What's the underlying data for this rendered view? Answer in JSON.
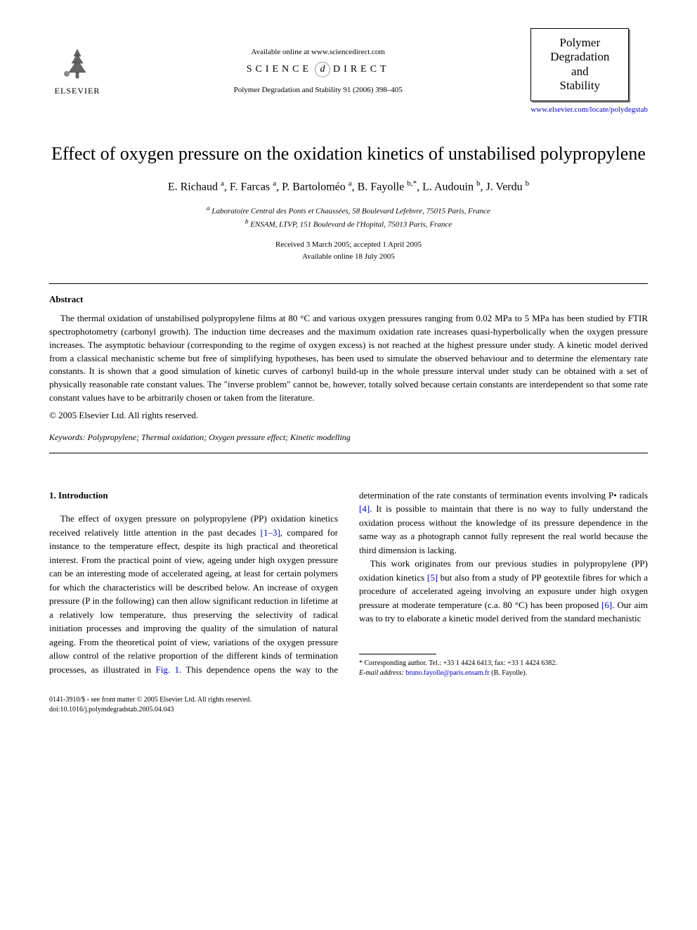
{
  "header": {
    "available_online": "Available online at www.sciencedirect.com",
    "science_direct_left": "SCIENCE",
    "science_direct_right": "DIRECT",
    "journal_ref": "Polymer Degradation and Stability 91 (2006) 398–405",
    "elsevier_label": "ELSEVIER",
    "journal_box_line1": "Polymer",
    "journal_box_line2": "Degradation",
    "journal_box_line3": "and",
    "journal_box_line4": "Stability",
    "journal_link": "www.elsevier.com/locate/polydegstab"
  },
  "title": "Effect of oxygen pressure on the oxidation kinetics of unstabilised polypropylene",
  "authors_html": "E. Richaud <sup>a</sup>, F. Farcas <sup>a</sup>, P. Bartoloméo <sup>a</sup>, B. Fayolle <sup>b,*</sup>, L. Audouin <sup>b</sup>, J. Verdu <sup>b</sup>",
  "affiliations": {
    "a": "Laboratoire Central des Ponts et Chaussées, 58 Boulevard Lefebvre, 75015 Paris, France",
    "b": "ENSAM, LTVP, 151 Boulevard de l'Hopital, 75013 Paris, France"
  },
  "dates": {
    "received": "Received 3 March 2005; accepted 1 April 2005",
    "available": "Available online 18 July 2005"
  },
  "abstract": {
    "heading": "Abstract",
    "body": "The thermal oxidation of unstabilised polypropylene films at 80 °C and various oxygen pressures ranging from 0.02 MPa to 5 MPa has been studied by FTIR spectrophotometry (carbonyl growth). The induction time decreases and the maximum oxidation rate increases quasi-hyperbolically when the oxygen pressure increases. The asymptotic behaviour (corresponding to the regime of oxygen excess) is not reached at the highest pressure under study. A kinetic model derived from a classical mechanistic scheme but free of simplifying hypotheses, has been used to simulate the observed behaviour and to determine the elementary rate constants. It is shown that a good simulation of kinetic curves of carbonyl build-up in the whole pressure interval under study can be obtained with a set of physically reasonable rate constant values. The \"inverse problem\" cannot be, however, totally solved because certain constants are interdependent so that some rate constant values have to be arbitrarily chosen or taken from the literature.",
    "copyright": "© 2005 Elsevier Ltd. All rights reserved."
  },
  "keywords": {
    "label": "Keywords:",
    "text": "Polypropylene; Thermal oxidation; Oxygen pressure effect; Kinetic modelling"
  },
  "intro": {
    "heading": "1. Introduction",
    "p1_a": "The effect of oxygen pressure on polypropylene (PP) oxidation kinetics received relatively little attention in the past decades ",
    "p1_ref1": "[1–3]",
    "p1_b": ", compared for instance to the temperature effect, despite its high practical and theoretical interest. From the practical point of view, ageing under high oxygen pressure can be an interesting mode of accelerated ageing, at least for certain polymers for which the characteristics will be described below. An increase of oxygen pressure (P in the following) can then allow significant reduction in lifetime at a relatively low temperature, thus preserving the selectivity of radical initiation processes and improving the quality of the ",
    "p1_c": "simulation of natural ageing. From the theoretical point of view, variations of the oxygen pressure allow control of the relative proportion of the different kinds of termination processes, as illustrated in ",
    "p1_ref_fig": "Fig. 1",
    "p1_d": ". This dependence opens the way to the determination of the rate constants of termination events involving P• radicals ",
    "p1_ref4": "[4]",
    "p1_e": ". It is possible to maintain that there is no way to fully understand the oxidation process without the knowledge of its pressure dependence in the same way as a photograph cannot fully represent the real world because the third dimension is lacking.",
    "p2_a": "This work originates from our previous studies in polypropylene (PP) oxidation kinetics ",
    "p2_ref5": "[5]",
    "p2_b": " but also from a study of PP geotextile fibres for which a procedure of accelerated ageing involving an exposure under high oxygen pressure at moderate temperature (c.a. 80 °C) has been proposed ",
    "p2_ref6": "[6]",
    "p2_c": ". Our aim was to try to elaborate a kinetic model derived from the standard mechanistic"
  },
  "footnote": {
    "corr": "* Corresponding author. Tel.: +33 1 4424 6413; fax: +33 1 4424 6382.",
    "email_label": "E-mail address:",
    "email": "bruno.fayolle@paris.ensam.fr",
    "email_person": "(B. Fayolle)."
  },
  "footer": {
    "line1": "0141-3910/$ - see front matter © 2005 Elsevier Ltd. All rights reserved.",
    "line2": "doi:10.1016/j.polymdegradstab.2005.04.043"
  },
  "colors": {
    "text": "#000000",
    "link": "#0000cc",
    "background": "#ffffff"
  }
}
